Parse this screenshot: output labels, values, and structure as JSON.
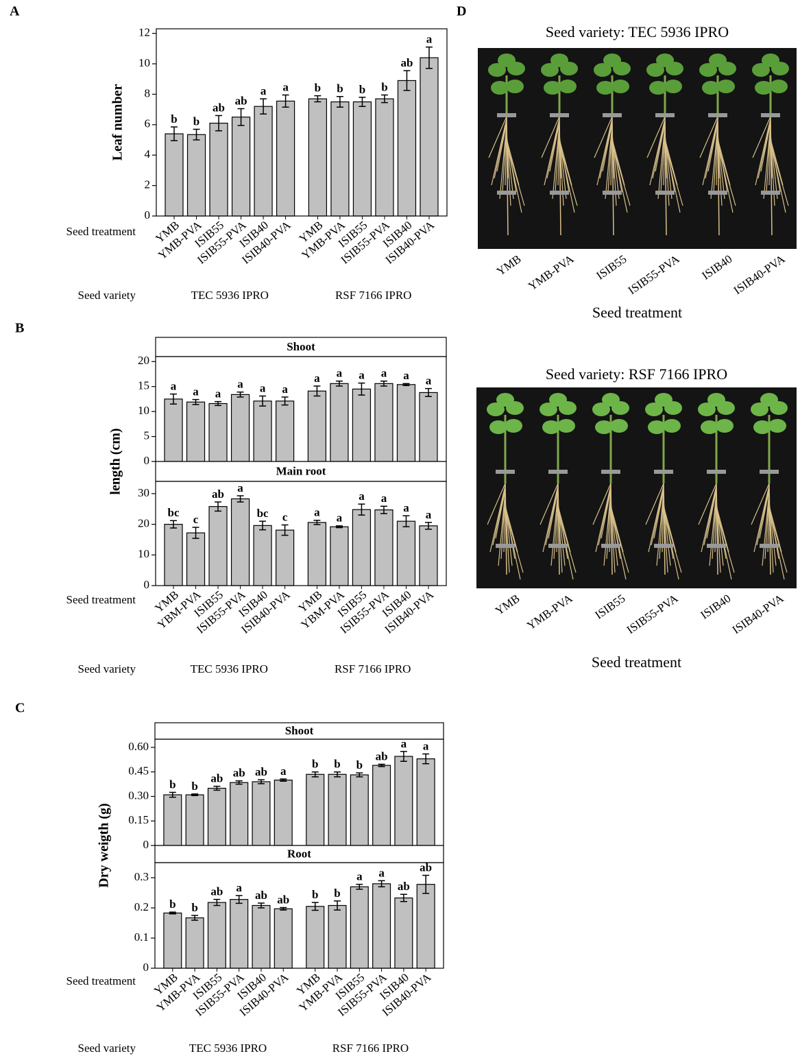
{
  "chart_data": [
    {
      "type": "bar",
      "label": "A",
      "ylabel": "Leaf number",
      "categories": [
        "YMB",
        "YMB-PVA",
        "ISIB55",
        "ISIB55-PVA",
        "ISIB40",
        "ISIB40-PVA",
        "YMB",
        "YMB-PVA",
        "ISIB55",
        "ISIB55-PVA",
        "ISIB40",
        "ISIB40-PVA"
      ],
      "varieties": [
        "TEC 5936 IPRO",
        "RSF 7166 IPRO"
      ],
      "treatment_label": "Seed treatment",
      "variety_label": "Seed variety",
      "color": "#c0c0c0",
      "panels": [
        {
          "values": [
            5.4,
            5.35,
            6.1,
            6.5,
            7.2,
            7.55,
            7.7,
            7.5,
            7.5,
            7.7,
            8.9,
            10.4
          ],
          "errors": [
            0.45,
            0.35,
            0.5,
            0.55,
            0.5,
            0.4,
            0.2,
            0.35,
            0.3,
            0.25,
            0.65,
            0.7
          ],
          "letters": [
            "b",
            "b",
            "ab",
            "ab",
            "a",
            "a",
            "b",
            "b",
            "b",
            "b",
            "ab",
            "a"
          ],
          "ylim": [
            0,
            12.3
          ],
          "yticks": [
            0,
            2,
            4,
            6,
            8,
            10,
            12
          ]
        }
      ]
    },
    {
      "type": "bar",
      "label": "B",
      "ylabel": "length (cm)",
      "categories": [
        "YMB",
        "YBM-PVA",
        "ISIB55",
        "ISIB55-PVA",
        "ISIB40",
        "ISIB40-PVA",
        "YMB",
        "YBM-PVA",
        "ISIB55",
        "ISIB55-PVA",
        "ISIB40",
        "ISIB40-PVA"
      ],
      "varieties": [
        "TEC 5936 IPRO",
        "RSF 7166 IPRO"
      ],
      "treatment_label": "Seed treatment",
      "variety_label": "Seed variety",
      "color": "#c0c0c0",
      "panels": [
        {
          "title": "Shoot",
          "values": [
            12.5,
            11.9,
            11.6,
            13.4,
            12.1,
            12.1,
            14.1,
            15.6,
            14.5,
            15.6,
            15.4,
            13.8
          ],
          "errors": [
            1,
            0.5,
            0.4,
            0.5,
            1,
            0.8,
            1,
            0.5,
            1.2,
            0.5,
            0.2,
            0.8
          ],
          "letters": [
            "a",
            "a",
            "a",
            "a",
            "a",
            "a",
            "a",
            "a",
            "a",
            "a",
            "a",
            "a"
          ],
          "ylim": [
            0,
            21
          ],
          "yticks": [
            0,
            5,
            10,
            15,
            20
          ]
        },
        {
          "title": "Main root",
          "values": [
            20,
            17.2,
            25.8,
            28.3,
            19.6,
            18.1,
            20.6,
            19.2,
            24.8,
            24.7,
            21,
            19.5
          ],
          "errors": [
            1.2,
            1.8,
            1.5,
            1,
            1.4,
            1.7,
            0.7,
            0.3,
            1.8,
            1.2,
            1.8,
            1.1
          ],
          "letters": [
            "bc",
            "c",
            "ab",
            "a",
            "bc",
            "c",
            "a",
            "a",
            "a",
            "a",
            "a",
            "a"
          ],
          "ylim": [
            0,
            34
          ],
          "yticks": [
            0,
            10,
            20,
            30
          ]
        }
      ]
    },
    {
      "type": "bar",
      "label": "C",
      "ylabel": "Dry weigth (g)",
      "categories": [
        "YMB",
        "YMB-PVA",
        "ISIB55",
        "ISIB55-PVA",
        "ISIB40",
        "ISIB40-PVA",
        "YMB",
        "YMB-PVA",
        "ISIB55",
        "ISIB55-PVA",
        "ISIB40",
        "ISIB40-PVA"
      ],
      "varieties": [
        "TEC 5936 IPRO",
        "RSF 7166 IPRO"
      ],
      "treatment_label": "Seed treatment",
      "variety_label": "Seed variety",
      "color": "#c0c0c0",
      "panels": [
        {
          "title": "Shoot",
          "values": [
            0.31,
            0.31,
            0.35,
            0.385,
            0.39,
            0.4,
            0.435,
            0.435,
            0.432,
            0.49,
            0.545,
            0.53
          ],
          "errors": [
            0.015,
            0.005,
            0.012,
            0.01,
            0.012,
            0.007,
            0.015,
            0.015,
            0.012,
            0.007,
            0.03,
            0.03
          ],
          "letters": [
            "b",
            "b",
            "ab",
            "ab",
            "ab",
            "a",
            "b",
            "b",
            "b",
            "ab",
            "a",
            "a"
          ],
          "ylim": [
            0,
            0.65
          ],
          "yticks": [
            0,
            {
              "value": 0.15,
              "label": "0.15"
            },
            {
              "value": 0.3,
              "label": "0.30"
            },
            {
              "value": 0.45,
              "label": "0.45"
            },
            {
              "value": 0.6,
              "label": "0.60"
            }
          ]
        },
        {
          "title": "Root",
          "values": [
            0.183,
            0.167,
            0.218,
            0.228,
            0.208,
            0.197,
            0.205,
            0.208,
            0.27,
            0.28,
            0.233,
            0.278
          ],
          "errors": [
            0.003,
            0.008,
            0.01,
            0.013,
            0.008,
            0.004,
            0.013,
            0.015,
            0.008,
            0.01,
            0.012,
            0.03
          ],
          "letters": [
            "b",
            "b",
            "ab",
            "a",
            "ab",
            "ab",
            "b",
            "b",
            "a",
            "a",
            "ab",
            "ab"
          ],
          "ylim": [
            0,
            0.35
          ],
          "yticks": [
            0,
            0.1,
            0.2,
            0.3
          ]
        }
      ]
    }
  ],
  "panel_d": {
    "label": "D",
    "photos": [
      {
        "title": "Seed variety: TEC 5936 IPRO",
        "treatments": [
          "YMB",
          "YMB-PVA",
          "ISIB55",
          "ISIB55-PVA",
          "ISIB40",
          "ISIB40-PVA"
        ],
        "xlabel": "Seed treatment"
      },
      {
        "title": "Seed variety: RSF 7166 IPRO",
        "treatments": [
          "YMB",
          "YMB-PVA",
          "ISIB55",
          "ISIB55-PVA",
          "ISIB40",
          "ISIB40-PVA"
        ],
        "xlabel": "Seed treatment"
      }
    ]
  }
}
